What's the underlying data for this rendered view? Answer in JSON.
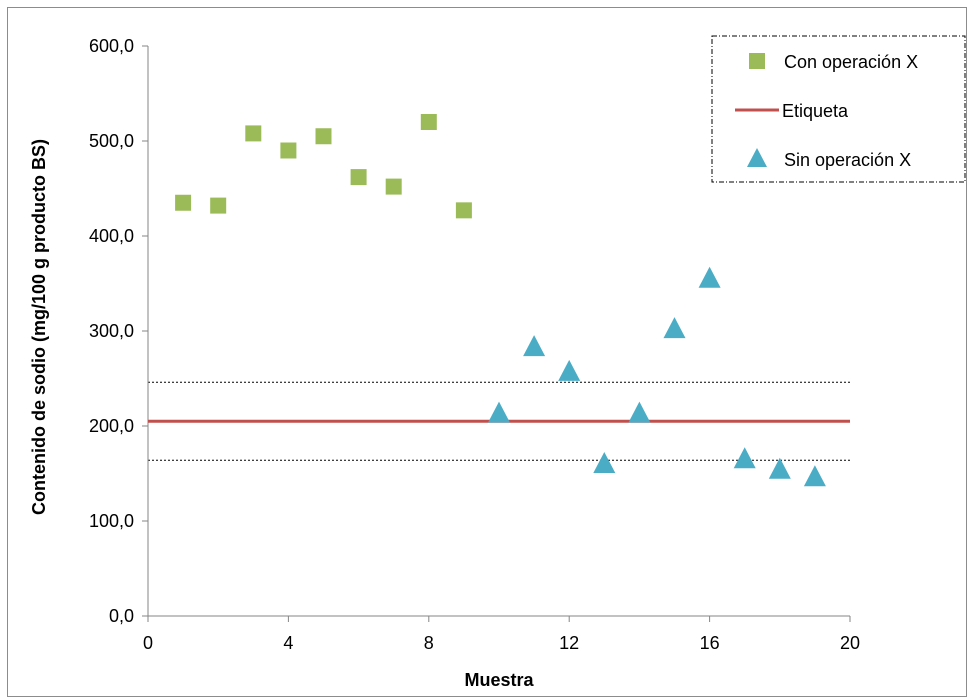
{
  "chart_data": {
    "type": "scatter",
    "xlabel": "Muestra",
    "ylabel": "Contenido de sodio (mg/100 g producto BS)",
    "xlim": [
      0,
      20
    ],
    "ylim": [
      0,
      600
    ],
    "xticks": [
      0,
      4,
      8,
      12,
      16,
      20
    ],
    "yticks": [
      0,
      100,
      200,
      300,
      400,
      500,
      600
    ],
    "xtick_labels": [
      "0",
      "4",
      "8",
      "12",
      "16",
      "20"
    ],
    "ytick_labels": [
      "0,0",
      "100,0",
      "200,0",
      "300,0",
      "400,0",
      "500,0",
      "600,0"
    ],
    "grid": false,
    "legend_position": "top-right",
    "series": [
      {
        "name": "Con operación X",
        "marker": "square",
        "color": "#9bbb59",
        "x": [
          1,
          2,
          3,
          4,
          5,
          6,
          7,
          8,
          9
        ],
        "y": [
          435,
          432,
          508,
          490,
          505,
          462,
          452,
          520,
          427
        ]
      },
      {
        "name": "Etiqueta",
        "marker": "line",
        "color": "#c0504d",
        "x": [
          0,
          20
        ],
        "y": [
          205,
          205
        ]
      },
      {
        "name": "Sin operación X",
        "marker": "triangle",
        "color": "#4bacc6",
        "x": [
          10,
          11,
          12,
          13,
          14,
          15,
          16,
          17,
          18,
          19
        ],
        "y": [
          213,
          283,
          257,
          160,
          213,
          302,
          355,
          165,
          154,
          146
        ]
      }
    ],
    "reference_lines": [
      {
        "y": 246,
        "style": "dotted",
        "color": "#000000"
      },
      {
        "y": 164,
        "style": "dotted",
        "color": "#000000"
      }
    ]
  }
}
